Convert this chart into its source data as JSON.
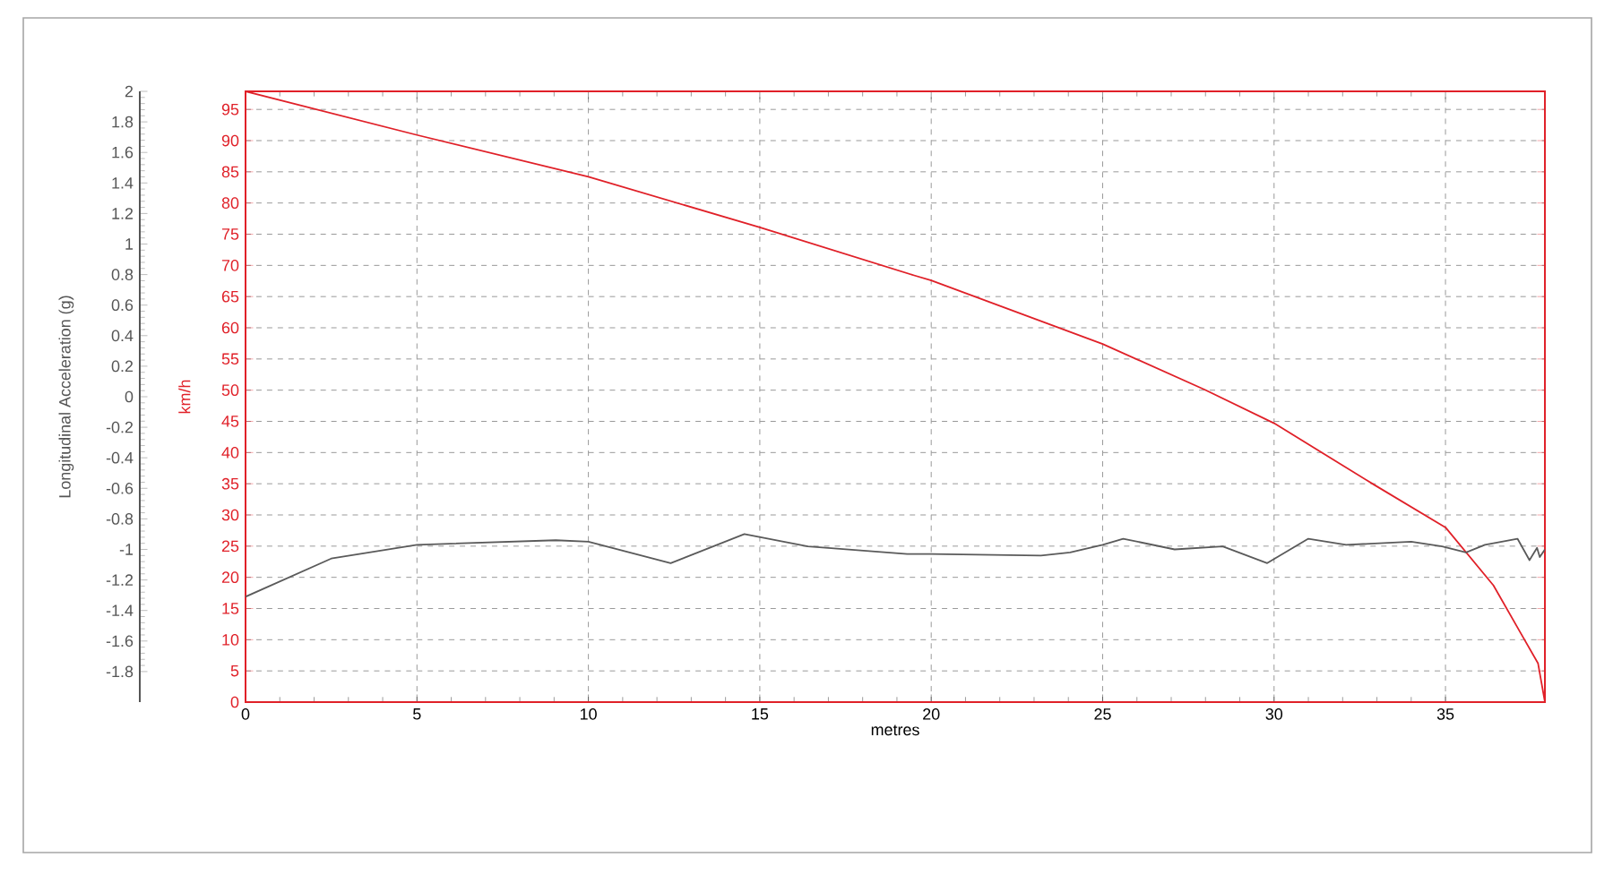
{
  "chart_data": {
    "type": "line",
    "xlabel": "metres",
    "ylabel": "Longitudinal Acceleration (g)",
    "y2label": "km/h",
    "xlim": [
      0,
      37.9
    ],
    "xticks": [
      0,
      5,
      10,
      15,
      20,
      25,
      30,
      35
    ],
    "ylim": [
      -2,
      2
    ],
    "yticks": [
      2,
      1.8,
      1.6,
      1.4,
      1.2,
      1,
      0.8,
      0.6,
      0.4,
      0.2,
      0,
      -0.2,
      -0.4,
      -0.6,
      -0.8,
      -1,
      -1.2,
      -1.4,
      -1.6,
      -1.8
    ],
    "y2lim": [
      0,
      97.9
    ],
    "y2ticks": [
      0,
      5,
      10,
      15,
      20,
      25,
      30,
      35,
      40,
      45,
      50,
      55,
      60,
      65,
      70,
      75,
      80,
      85,
      90,
      95
    ],
    "grid": true,
    "series": [
      {
        "color": "#5a5a5a",
        "x": [
          0,
          2.5,
          5,
          9.05,
          10,
          12.4,
          14.55,
          16.4,
          19.3,
          20,
          23.2,
          24.05,
          25,
          25.6,
          27.1,
          28.5,
          29.8,
          31.0,
          32.1,
          34.0,
          34.9,
          35.6,
          36.15,
          37.1,
          37.45,
          37.67,
          37.75,
          37.9
        ],
        "values": [
          -1.31,
          -1.06,
          -0.97,
          -0.94,
          -0.95,
          -1.09,
          -0.9,
          -0.98,
          -1.03,
          -1.03,
          -1.04,
          -1.02,
          -0.97,
          -0.93,
          -1.0,
          -0.98,
          -1.09,
          -0.93,
          -0.97,
          -0.95,
          -0.98,
          -1.02,
          -0.97,
          -0.93,
          -1.07,
          -0.99,
          -1.05,
          -1.0
        ]
      },
      {
        "color": "#e02028",
        "axis": "y2",
        "x": [
          0,
          5,
          10,
          15,
          19.5,
          20,
          25,
          27.97,
          30,
          32.9,
          35,
          36.4,
          37.2,
          37.7,
          37.9
        ],
        "values": [
          97.9,
          90.9,
          84.2,
          76.1,
          68.4,
          67.6,
          57.4,
          50.1,
          44.7,
          34.9,
          28.0,
          18.7,
          11.0,
          6.2,
          0
        ]
      }
    ]
  }
}
